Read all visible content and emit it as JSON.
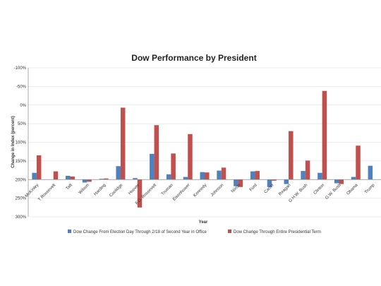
{
  "chart_data": {
    "type": "bar",
    "title": "Dow Performance by President",
    "xlabel": "Year",
    "ylabel": "Change in Index (percent)",
    "ylim": [
      -100,
      300
    ],
    "yticks": [
      "-100%",
      "-50%",
      "0%",
      "50%",
      "100%",
      "150%",
      "200%",
      "250%",
      "300%"
    ],
    "grid": true,
    "legend_position": "bottom",
    "categories": [
      "McKinley",
      "T Roosevelt",
      "Taft",
      "Wilson",
      "Harding",
      "Coolidge",
      "Hoover",
      "F.D. Roosevelt",
      "Truman",
      "Eisenhower",
      "Kennedy",
      "Johnson",
      "Nixon",
      "Ford",
      "Carter",
      "Reagan",
      "G.H.W. Bush",
      "Clinton",
      "G.W. Bush",
      "Obama",
      "Trump"
    ],
    "series": [
      {
        "name": "Dow Change From Election Day Through 2/18 of Second Year in Office",
        "color": "#4f81bd",
        "values": [
          18,
          0,
          10,
          -8,
          2,
          36,
          4,
          69,
          14,
          7,
          20,
          24,
          -18,
          22,
          -20,
          -12,
          23,
          18,
          -10,
          7,
          37
        ]
      },
      {
        "name": "Dow Change Through Entire Presidential Term",
        "color": "#c0504d",
        "values": [
          65,
          22,
          8,
          -6,
          3,
          193,
          -75,
          146,
          70,
          122,
          19,
          32,
          -20,
          23,
          -3,
          130,
          51,
          238,
          -12,
          91,
          null
        ]
      }
    ]
  }
}
